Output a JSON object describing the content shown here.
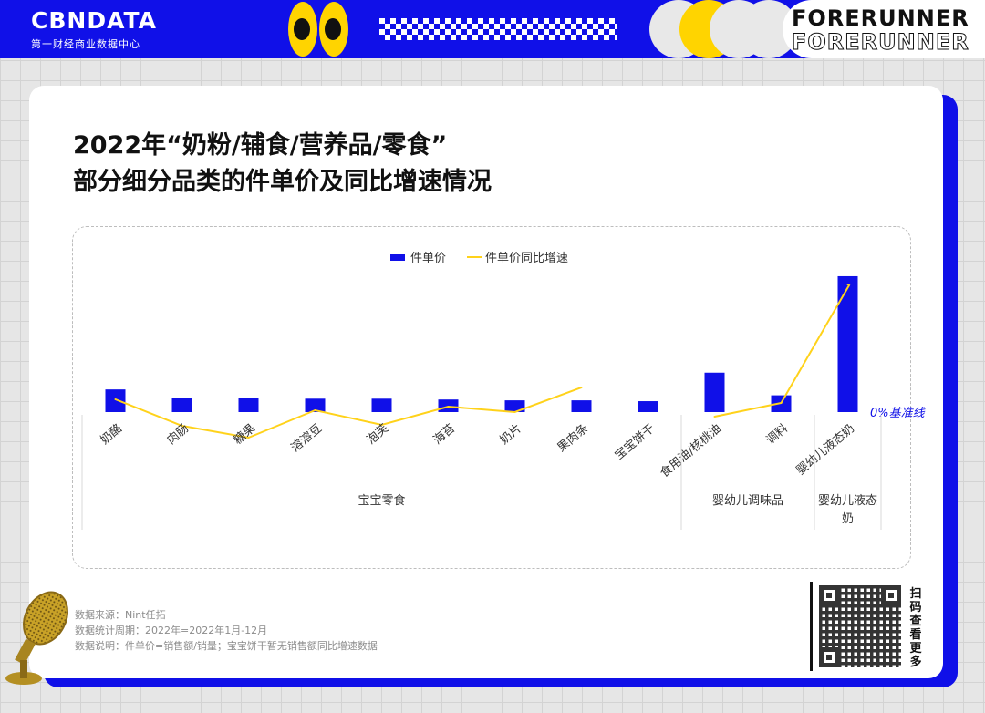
{
  "header": {
    "logo": "CBNDATA",
    "logo_sub": "第一财经商业数据中心",
    "brand_line1": "FORERUNNER",
    "brand_line2": "FORERUNNER"
  },
  "title": {
    "line1": "2022年“奶粉/辅食/营养品/零食”",
    "line2": "部分细分品类的件单价及同比增速情况"
  },
  "chart_data": {
    "type": "bar",
    "legend": {
      "position": "top-center",
      "bar_series": "件单价",
      "line_series": "件单价同比增速"
    },
    "categories": [
      "奶酪",
      "肉肠",
      "糖果",
      "溶溶豆",
      "泡芙",
      "海苔",
      "奶片",
      "果肉条",
      "宝宝饼干",
      "食用油/核桃油",
      "调料",
      "婴幼儿液态奶"
    ],
    "groups": [
      {
        "label": "宝宝零食",
        "span": 9
      },
      {
        "label": "婴幼儿调味品",
        "span": 2
      },
      {
        "label": "婴幼儿液态奶",
        "span": 1
      }
    ],
    "series": [
      {
        "name": "件单价",
        "type": "bar",
        "values": [
          27,
          17,
          17,
          16,
          16,
          15,
          14,
          14,
          13,
          47,
          20,
          162
        ]
      },
      {
        "name": "件单价同比增速",
        "type": "line",
        "values": [
          14,
          -15,
          -28,
          2,
          -14,
          6,
          0,
          27,
          null,
          -5,
          10,
          140
        ]
      }
    ],
    "baseline_label": "0%基准线",
    "colors": {
      "bar": "#1010e8",
      "line": "#ffd21a",
      "baseline_label": "#1010e8"
    }
  },
  "footer": {
    "notes": [
      "数据来源：Nint任拓",
      "数据统计周期：2022年=2022年1月-12月",
      "数据说明：件单价=销售额/销量；宝宝饼干暂无销售额同比增速数据"
    ],
    "qr_caption": "扫码查看更多"
  }
}
